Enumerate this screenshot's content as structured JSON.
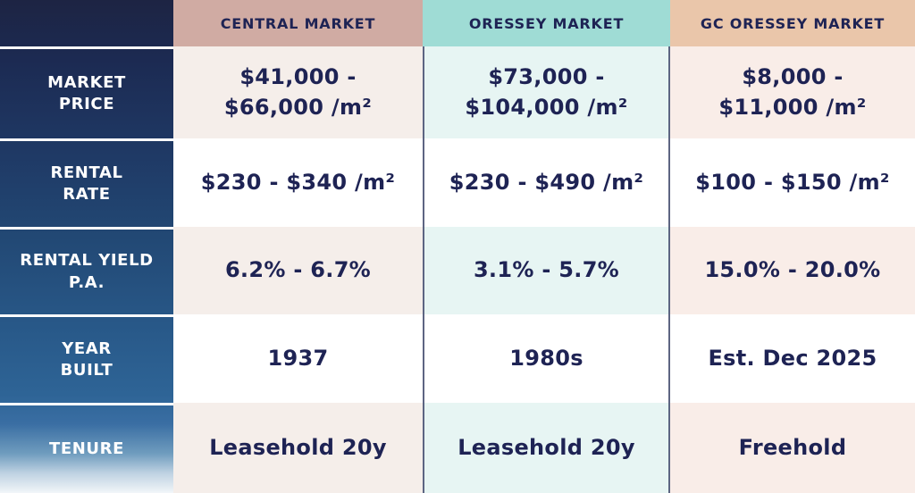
{
  "colors": {
    "navy-text": "#1e2354",
    "label-gradient-top": "#1d2443",
    "header-central-bg": "#d0aba3",
    "header-oressey-bg": "#9fdcd5",
    "header-gc-bg": "#eac6aa",
    "tint-central": "#f5eeea",
    "tint-oressey": "#e7f5f3",
    "tint-gc": "#f9ede8",
    "divider": "#5d6582"
  },
  "table": {
    "corner_label": "",
    "columns": [
      {
        "header": "CENTRAL MARKET"
      },
      {
        "header": "ORESSEY MARKET"
      },
      {
        "header": "GC ORESSEY MARKET"
      }
    ],
    "rows": [
      {
        "label": "MARKET\nPRICE",
        "values": [
          "$41,000 -\n$66,000 /m²",
          "$73,000 -\n$104,000 /m²",
          "$8,000 -\n$11,000 /m²"
        ]
      },
      {
        "label": "RENTAL\nRATE",
        "values": [
          "$230 - $340 /m²",
          "$230 - $490 /m²",
          "$100 - $150 /m²"
        ]
      },
      {
        "label": "RENTAL YIELD\nP.A.",
        "values": [
          "6.2% - 6.7%",
          "3.1% - 5.7%",
          "15.0% - 20.0%"
        ]
      },
      {
        "label": "YEAR\nBUILT",
        "values": [
          "1937",
          "1980s",
          "Est. Dec 2025"
        ]
      },
      {
        "label": "TENURE",
        "values": [
          "Leasehold 20y",
          "Leasehold 20y",
          "Freehold"
        ]
      }
    ]
  }
}
